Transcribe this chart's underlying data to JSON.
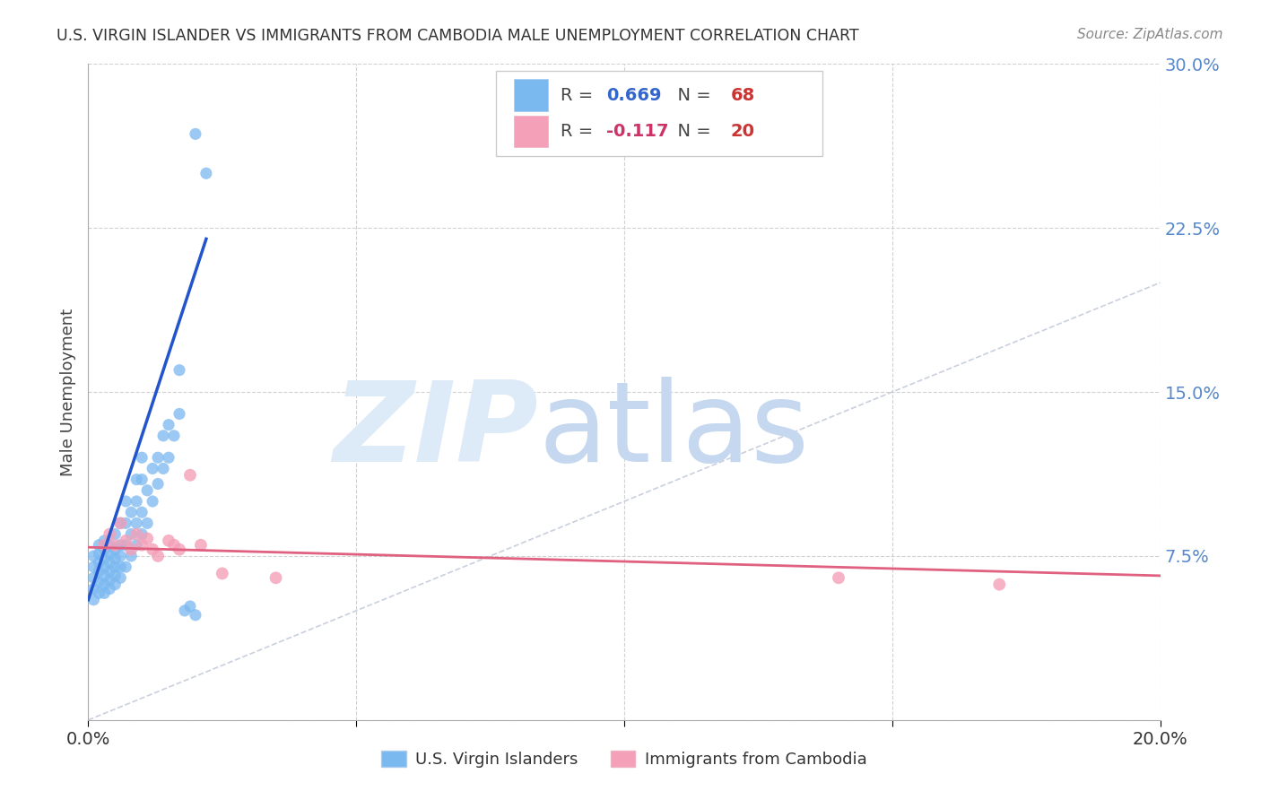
{
  "title": "U.S. VIRGIN ISLANDER VS IMMIGRANTS FROM CAMBODIA MALE UNEMPLOYMENT CORRELATION CHART",
  "source": "Source: ZipAtlas.com",
  "ylabel": "Male Unemployment",
  "xlim": [
    0.0,
    0.2
  ],
  "ylim": [
    0.0,
    0.3
  ],
  "color_vi": "#7ab8f0",
  "color_cam": "#f4a0b8",
  "trendline_vi_color": "#2255cc",
  "trendline_cam_color": "#e06080",
  "trendline_diag_color": "#c0c8d8",
  "bg_color": "#ffffff",
  "legend_r1_val": "0.669",
  "legend_n1_val": "68",
  "legend_r2_val": "-0.117",
  "legend_n2_val": "20",
  "vi_x": [
    0.001,
    0.001,
    0.001,
    0.001,
    0.001,
    0.002,
    0.002,
    0.002,
    0.002,
    0.002,
    0.002,
    0.003,
    0.003,
    0.003,
    0.003,
    0.003,
    0.003,
    0.003,
    0.004,
    0.004,
    0.004,
    0.004,
    0.004,
    0.004,
    0.005,
    0.005,
    0.005,
    0.005,
    0.005,
    0.005,
    0.006,
    0.006,
    0.006,
    0.006,
    0.006,
    0.007,
    0.007,
    0.007,
    0.007,
    0.008,
    0.008,
    0.008,
    0.009,
    0.009,
    0.009,
    0.009,
    0.01,
    0.01,
    0.01,
    0.01,
    0.011,
    0.011,
    0.012,
    0.012,
    0.013,
    0.013,
    0.014,
    0.014,
    0.015,
    0.015,
    0.016,
    0.017,
    0.017,
    0.018,
    0.019,
    0.02,
    0.02,
    0.022
  ],
  "vi_y": [
    0.06,
    0.065,
    0.07,
    0.075,
    0.055,
    0.058,
    0.063,
    0.068,
    0.072,
    0.076,
    0.08,
    0.058,
    0.062,
    0.066,
    0.07,
    0.074,
    0.078,
    0.082,
    0.06,
    0.064,
    0.068,
    0.072,
    0.076,
    0.08,
    0.062,
    0.066,
    0.07,
    0.074,
    0.078,
    0.085,
    0.065,
    0.07,
    0.075,
    0.08,
    0.09,
    0.07,
    0.08,
    0.09,
    0.1,
    0.075,
    0.085,
    0.095,
    0.08,
    0.09,
    0.1,
    0.11,
    0.085,
    0.095,
    0.11,
    0.12,
    0.09,
    0.105,
    0.1,
    0.115,
    0.108,
    0.12,
    0.115,
    0.13,
    0.12,
    0.135,
    0.13,
    0.14,
    0.16,
    0.05,
    0.052,
    0.048,
    0.268,
    0.25
  ],
  "cam_x": [
    0.003,
    0.004,
    0.005,
    0.006,
    0.007,
    0.008,
    0.009,
    0.01,
    0.011,
    0.012,
    0.013,
    0.015,
    0.016,
    0.017,
    0.019,
    0.021,
    0.025,
    0.035,
    0.14,
    0.17
  ],
  "cam_y": [
    0.08,
    0.085,
    0.08,
    0.09,
    0.082,
    0.078,
    0.085,
    0.08,
    0.083,
    0.078,
    0.075,
    0.082,
    0.08,
    0.078,
    0.112,
    0.08,
    0.067,
    0.065,
    0.065,
    0.062
  ],
  "vi_trend_x0": 0.0,
  "vi_trend_y0": 0.055,
  "vi_trend_x1": 0.022,
  "vi_trend_y1": 0.22,
  "cam_trend_x0": 0.0,
  "cam_trend_y0": 0.079,
  "cam_trend_x1": 0.2,
  "cam_trend_y1": 0.066
}
